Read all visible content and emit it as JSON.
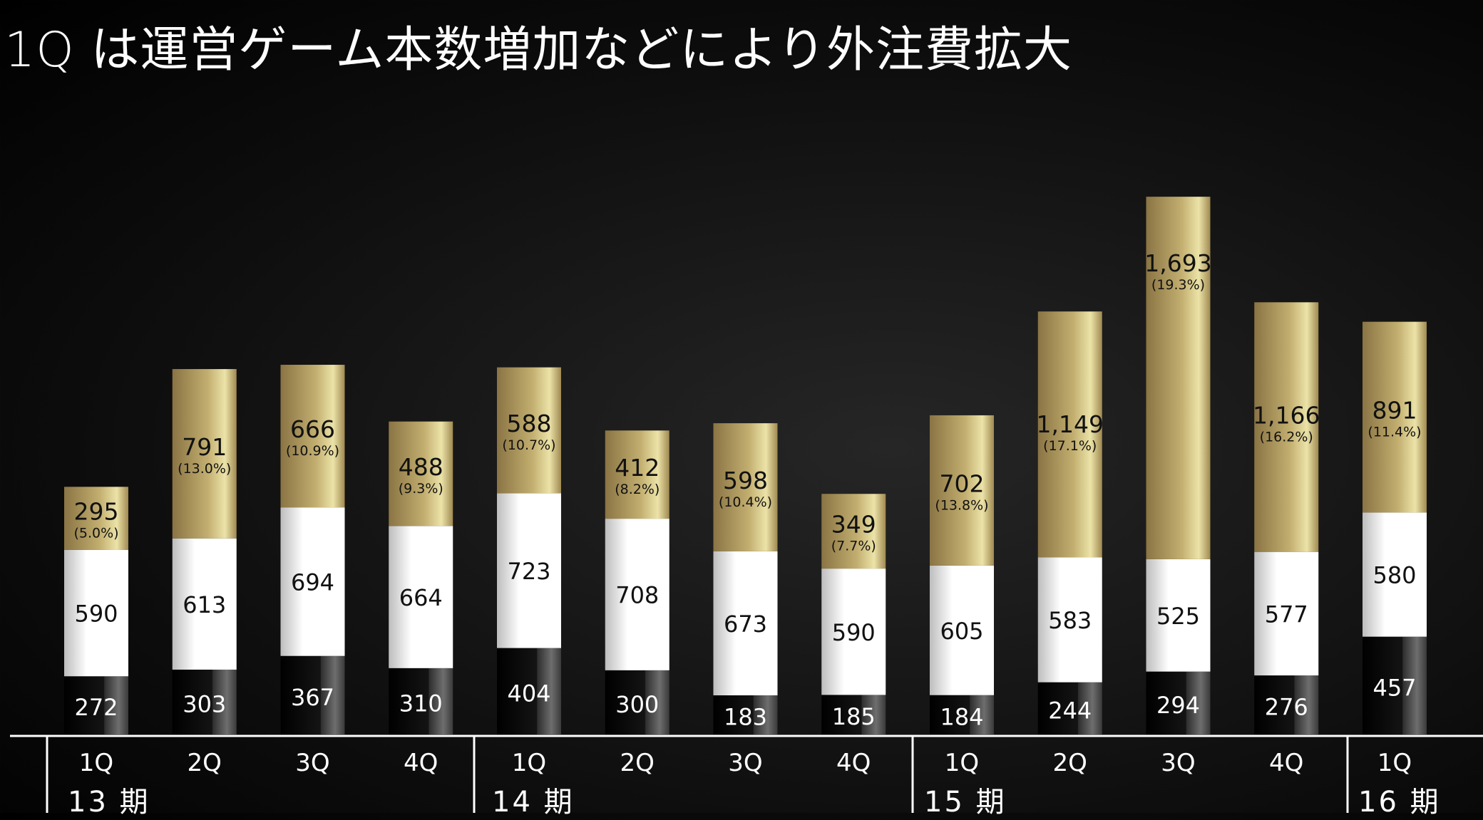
{
  "title": "1Q は運営ゲーム本数増加などにより外注費拡大",
  "colors": {
    "background": "#000000",
    "gold_light": "#ece3a8",
    "gold_mid": "#c2ae6f",
    "gold_dark": "#8a7444",
    "white_segment": "#ffffff",
    "dark_segment": "#0a0a0a",
    "text_dark": "#111111",
    "text_light": "#ffffff"
  },
  "chart_data": {
    "type": "bar",
    "stacked": true,
    "categories": [
      "1Q",
      "2Q",
      "3Q",
      "4Q",
      "1Q",
      "2Q",
      "3Q",
      "4Q",
      "1Q",
      "2Q",
      "3Q",
      "4Q",
      "1Q"
    ],
    "periods": [
      {
        "label": "13 期",
        "quarters": 4
      },
      {
        "label": "14 期",
        "quarters": 4
      },
      {
        "label": "15 期",
        "quarters": 4
      },
      {
        "label": "16 期",
        "quarters": 1
      }
    ],
    "series": [
      {
        "key": "bottom",
        "values": [
          272,
          303,
          367,
          310,
          404,
          300,
          183,
          185,
          184,
          244,
          294,
          276,
          457
        ]
      },
      {
        "key": "middle",
        "values": [
          590,
          613,
          694,
          664,
          723,
          708,
          673,
          590,
          605,
          583,
          525,
          577,
          580
        ]
      },
      {
        "key": "top",
        "values": [
          295,
          791,
          666,
          488,
          588,
          412,
          598,
          349,
          702,
          1149,
          1693,
          1166,
          891
        ],
        "labels": [
          "295",
          "791",
          "666",
          "488",
          "588",
          "412",
          "598",
          "349",
          "702",
          "1,149",
          "1,693",
          "1,166",
          "891"
        ],
        "percent_labels": [
          "(5.0%)",
          "(13.0%)",
          "(10.9%)",
          "(9.3%)",
          "(10.7%)",
          "(8.2%)",
          "(10.4%)",
          "(7.7%)",
          "(13.8%)",
          "(17.1%)",
          "(19.3%)",
          "(16.2%)",
          "(11.4%)"
        ]
      }
    ],
    "legend": "none",
    "grid": false
  }
}
